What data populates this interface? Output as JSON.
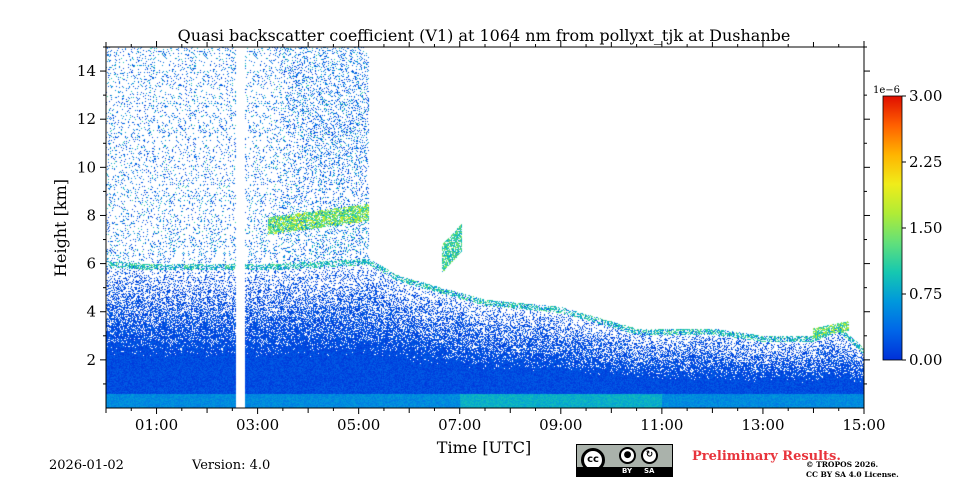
{
  "chart_data": {
    "type": "heatmap",
    "title": "Quasi backscatter coefficient (V1) at 1064 nm from pollyxt_tjk at Dushanbe",
    "xlabel": "Time [UTC]",
    "ylabel": "Height [km]",
    "xlim": [
      0,
      15
    ],
    "ylim": [
      0,
      15
    ],
    "x_tick_values": [
      1,
      3,
      5,
      7,
      9,
      11,
      13,
      15
    ],
    "x_tick_labels": [
      "01:00",
      "03:00",
      "05:00",
      "07:00",
      "09:00",
      "11:00",
      "13:00",
      "15:00"
    ],
    "y_tick_values": [
      2,
      4,
      6,
      8,
      10,
      12,
      14
    ],
    "y_tick_labels": [
      "2",
      "4",
      "6",
      "8",
      "10",
      "12",
      "14"
    ],
    "colorbar": {
      "min": 0,
      "max": 3.0,
      "ticks": [
        0,
        0.75,
        1.5,
        2.25,
        3.0
      ],
      "tick_labels": [
        "0.00",
        "0.75",
        "1.50",
        "2.25",
        "3.00"
      ],
      "exponent_label": "1e−6",
      "colors": [
        "#0030d8",
        "#0066e8",
        "#0098dc",
        "#16c8b0",
        "#62e07a",
        "#b0ec36",
        "#f0ec1a",
        "#ffb400",
        "#ff6000",
        "#e00e00"
      ]
    },
    "data_gap": {
      "start": 2.58,
      "end": 2.75
    },
    "boundary_layer_top_km": [
      [
        0,
        6.1
      ],
      [
        0.7,
        6.0
      ],
      [
        2.0,
        6.0
      ],
      [
        3.5,
        6.0
      ],
      [
        5.2,
        6.2
      ],
      [
        5.8,
        5.5
      ],
      [
        7.5,
        4.5
      ],
      [
        9.0,
        4.2
      ],
      [
        10.5,
        3.3
      ],
      [
        12.0,
        3.3
      ],
      [
        13.0,
        3.0
      ],
      [
        14.0,
        3.0
      ],
      [
        14.5,
        3.4
      ],
      [
        15.0,
        2.5
      ]
    ],
    "aerosol_layers": [
      {
        "name": "elevated layer",
        "t_start": 3.2,
        "t_end": 5.2,
        "h_base_km": 7.2,
        "h_top_km": 8.8,
        "peak_value": 2.0
      },
      {
        "name": "plume",
        "t_start": 6.65,
        "t_end": 7.05,
        "h_base_km": 5.6,
        "h_top_km": 8.2,
        "peak_value": 1.6
      },
      {
        "name": "top layer near ground",
        "t_start": 14.0,
        "t_end": 14.7,
        "h_base_km": 2.9,
        "h_top_km": 3.8,
        "peak_value": 1.9
      }
    ]
  },
  "footer": {
    "date": "2026-01-02",
    "version": "Version: 4.0",
    "preliminary": "Preliminary Results.",
    "copyright_line1": "© TROPOS 2026.",
    "copyright_line2": "CC BY SA 4.0 License."
  },
  "license_badge": {
    "cc": "cc",
    "by": "BY",
    "sa": "SA"
  },
  "colors": {
    "axis": "#000000",
    "gap": "#ffffff",
    "preliminary": "#e8343c"
  }
}
